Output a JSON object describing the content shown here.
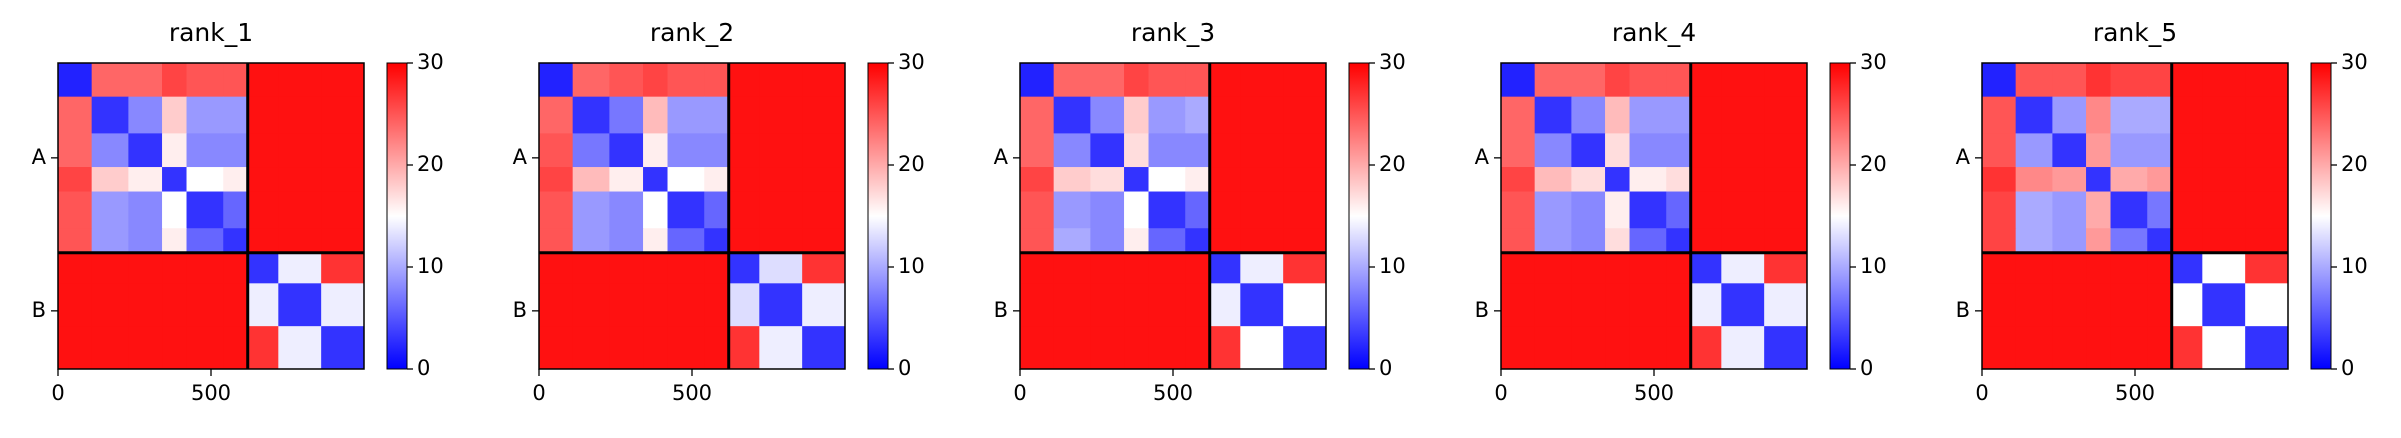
{
  "chart_data": [
    {
      "type": "heatmap",
      "title": "rank_1",
      "bins": [
        0,
        110,
        230,
        340,
        420,
        540,
        620,
        720,
        860,
        1000
      ],
      "values": [
        [
          2,
          24,
          24,
          26,
          25,
          25,
          29,
          29,
          29
        ],
        [
          24,
          3,
          8,
          18,
          9,
          9,
          29,
          29,
          29
        ],
        [
          24,
          8,
          3,
          16,
          8,
          8,
          29,
          29,
          29
        ],
        [
          26,
          18,
          16,
          3,
          15,
          16,
          29,
          29,
          29
        ],
        [
          25,
          9,
          8,
          15,
          3,
          6,
          29,
          29,
          29
        ],
        [
          25,
          9,
          8,
          16,
          6,
          3,
          29,
          29,
          29
        ],
        [
          29,
          29,
          29,
          29,
          29,
          29,
          3,
          14,
          27
        ],
        [
          29,
          29,
          29,
          29,
          29,
          29,
          14,
          3,
          14
        ],
        [
          29,
          29,
          29,
          29,
          29,
          29,
          27,
          14,
          3
        ]
      ],
      "xlim": [
        0,
        1000
      ],
      "ylim": [
        1000,
        0
      ],
      "xticks": [
        0,
        500
      ],
      "yticks": [
        {
          "value": 310,
          "label": "A"
        },
        {
          "value": 810,
          "label": "B"
        }
      ],
      "chain_breaks": [
        620
      ],
      "colormap": [
        "#0000ff",
        "#ffffff",
        "#ff0000"
      ],
      "vlim": [
        0,
        30
      ],
      "colorbar_ticks": [
        0,
        10,
        20,
        30
      ]
    },
    {
      "type": "heatmap",
      "title": "rank_2",
      "bins": [
        0,
        110,
        230,
        340,
        420,
        540,
        620,
        720,
        860,
        1000
      ],
      "values": [
        [
          2,
          24,
          25,
          26,
          25,
          25,
          29,
          29,
          29
        ],
        [
          24,
          3,
          7,
          19,
          9,
          9,
          29,
          29,
          29
        ],
        [
          25,
          7,
          3,
          16,
          8,
          8,
          29,
          29,
          29
        ],
        [
          26,
          19,
          16,
          3,
          15,
          16,
          29,
          29,
          29
        ],
        [
          25,
          9,
          8,
          15,
          3,
          6,
          29,
          29,
          29
        ],
        [
          25,
          9,
          8,
          16,
          6,
          3,
          29,
          29,
          29
        ],
        [
          29,
          29,
          29,
          29,
          29,
          29,
          3,
          13,
          27
        ],
        [
          29,
          29,
          29,
          29,
          29,
          29,
          13,
          3,
          14
        ],
        [
          29,
          29,
          29,
          29,
          29,
          29,
          27,
          14,
          3
        ]
      ],
      "xlim": [
        0,
        1000
      ],
      "ylim": [
        1000,
        0
      ],
      "xticks": [
        0,
        500
      ],
      "yticks": [
        {
          "value": 310,
          "label": "A"
        },
        {
          "value": 810,
          "label": "B"
        }
      ],
      "chain_breaks": [
        620
      ],
      "colormap": [
        "#0000ff",
        "#ffffff",
        "#ff0000"
      ],
      "vlim": [
        0,
        30
      ],
      "colorbar_ticks": [
        0,
        10,
        20,
        30
      ]
    },
    {
      "type": "heatmap",
      "title": "rank_3",
      "bins": [
        0,
        110,
        230,
        340,
        420,
        540,
        620,
        720,
        860,
        1000
      ],
      "values": [
        [
          2,
          24,
          24,
          26,
          25,
          25,
          29,
          29,
          29
        ],
        [
          24,
          3,
          8,
          18,
          9,
          10,
          29,
          29,
          29
        ],
        [
          24,
          8,
          3,
          17,
          8,
          8,
          29,
          29,
          29
        ],
        [
          26,
          18,
          17,
          3,
          15,
          16,
          29,
          29,
          29
        ],
        [
          25,
          9,
          8,
          15,
          3,
          6,
          29,
          29,
          29
        ],
        [
          25,
          10,
          8,
          16,
          6,
          3,
          29,
          29,
          29
        ],
        [
          29,
          29,
          29,
          29,
          29,
          29,
          3,
          14,
          27
        ],
        [
          29,
          29,
          29,
          29,
          29,
          29,
          14,
          3,
          15
        ],
        [
          29,
          29,
          29,
          29,
          29,
          29,
          27,
          15,
          3
        ]
      ],
      "xlim": [
        0,
        1000
      ],
      "ylim": [
        1000,
        0
      ],
      "xticks": [
        0,
        500
      ],
      "yticks": [
        {
          "value": 310,
          "label": "A"
        },
        {
          "value": 810,
          "label": "B"
        }
      ],
      "chain_breaks": [
        620
      ],
      "colormap": [
        "#0000ff",
        "#ffffff",
        "#ff0000"
      ],
      "vlim": [
        0,
        30
      ],
      "colorbar_ticks": [
        0,
        10,
        20,
        30
      ]
    },
    {
      "type": "heatmap",
      "title": "rank_4",
      "bins": [
        0,
        110,
        230,
        340,
        420,
        540,
        620,
        720,
        860,
        1000
      ],
      "values": [
        [
          2,
          24,
          24,
          26,
          25,
          25,
          29,
          29,
          29
        ],
        [
          24,
          3,
          8,
          19,
          9,
          9,
          29,
          29,
          29
        ],
        [
          24,
          8,
          3,
          17,
          8,
          8,
          29,
          29,
          29
        ],
        [
          26,
          19,
          17,
          3,
          16,
          17,
          29,
          29,
          29
        ],
        [
          25,
          9,
          8,
          16,
          3,
          6,
          29,
          29,
          29
        ],
        [
          25,
          9,
          8,
          17,
          6,
          3,
          29,
          29,
          29
        ],
        [
          29,
          29,
          29,
          29,
          29,
          29,
          3,
          14,
          27
        ],
        [
          29,
          29,
          29,
          29,
          29,
          29,
          14,
          3,
          14
        ],
        [
          29,
          29,
          29,
          29,
          29,
          29,
          27,
          14,
          3
        ]
      ],
      "xlim": [
        0,
        1000
      ],
      "ylim": [
        1000,
        0
      ],
      "xticks": [
        0,
        500
      ],
      "yticks": [
        {
          "value": 310,
          "label": "A"
        },
        {
          "value": 810,
          "label": "B"
        }
      ],
      "chain_breaks": [
        620
      ],
      "colormap": [
        "#0000ff",
        "#ffffff",
        "#ff0000"
      ],
      "vlim": [
        0,
        30
      ],
      "colorbar_ticks": [
        0,
        10,
        20,
        30
      ]
    },
    {
      "type": "heatmap",
      "title": "rank_5",
      "bins": [
        0,
        110,
        230,
        340,
        420,
        540,
        620,
        720,
        860,
        1000
      ],
      "values": [
        [
          2,
          25,
          25,
          27,
          26,
          26,
          29,
          29,
          29
        ],
        [
          25,
          3,
          9,
          22,
          10,
          10,
          29,
          29,
          29
        ],
        [
          25,
          9,
          3,
          21,
          9,
          9,
          29,
          29,
          29
        ],
        [
          27,
          22,
          21,
          3,
          20,
          21,
          29,
          29,
          29
        ],
        [
          26,
          10,
          9,
          20,
          3,
          7,
          29,
          29,
          29
        ],
        [
          26,
          10,
          9,
          21,
          7,
          3,
          29,
          29,
          29
        ],
        [
          29,
          29,
          29,
          29,
          29,
          29,
          3,
          15,
          27
        ],
        [
          29,
          29,
          29,
          29,
          29,
          29,
          15,
          3,
          15
        ],
        [
          29,
          29,
          29,
          29,
          29,
          29,
          27,
          15,
          3
        ]
      ],
      "xlim": [
        0,
        1000
      ],
      "ylim": [
        1000,
        0
      ],
      "xticks": [
        0,
        500
      ],
      "yticks": [
        {
          "value": 310,
          "label": "A"
        },
        {
          "value": 810,
          "label": "B"
        }
      ],
      "chain_breaks": [
        620
      ],
      "colormap": [
        "#0000ff",
        "#ffffff",
        "#ff0000"
      ],
      "vlim": [
        0,
        30
      ],
      "colorbar_ticks": [
        0,
        10,
        20,
        30
      ]
    }
  ]
}
